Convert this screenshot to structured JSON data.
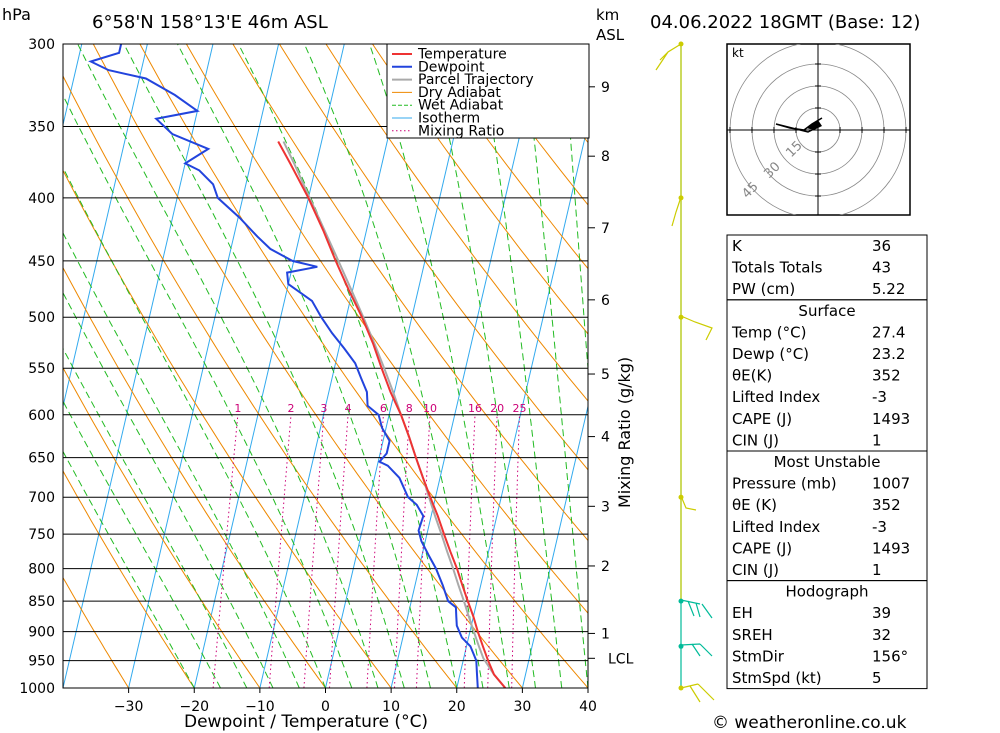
{
  "header": {
    "pressure_unit": "hPa",
    "location": "6°58'N 158°13'E 46m ASL",
    "height_unit_1": "km",
    "height_unit_2": "ASL",
    "datetime": "04.06.2022 18GMT (Base: 12)"
  },
  "footer": {
    "credit": "© weatheronline.co.uk"
  },
  "colors": {
    "temperature": "#ee3333",
    "dewpoint": "#2244dd",
    "parcel": "#aaaaaa",
    "dry_adiabat": "#ee8800",
    "wet_adiabat": "#22bb22",
    "isotherm": "#33aaee",
    "mixing_ratio": "#cc0077",
    "wind_barb": "#cccc00",
    "wind_barb_low": "#00bb99"
  },
  "chart_data": {
    "type": "line",
    "title": "",
    "xlabel": "Dewpoint / Temperature (°C)",
    "ylabel": "hPa",
    "right_label": "Mixing Ratio (g/kg)",
    "x_ticks": [
      -30,
      -20,
      -10,
      0,
      10,
      20,
      30,
      40
    ],
    "y_ticks": [
      300,
      350,
      400,
      450,
      500,
      550,
      600,
      650,
      700,
      750,
      800,
      850,
      900,
      950,
      1000
    ],
    "ylim": [
      1000,
      300
    ],
    "xlim_at_1000hPa": [
      -40,
      40
    ],
    "km_ticks": [
      {
        "label": "1",
        "p": 903
      },
      {
        "label": "2",
        "p": 796
      },
      {
        "label": "3",
        "p": 712
      },
      {
        "label": "4",
        "p": 625
      },
      {
        "label": "5",
        "p": 556
      },
      {
        "label": "6",
        "p": 484
      },
      {
        "label": "7",
        "p": 423
      },
      {
        "label": "8",
        "p": 370
      },
      {
        "label": "9",
        "p": 325
      }
    ],
    "lcl": {
      "label": "LCL",
      "p": 946
    },
    "mixing_ratio_labels": [
      "1",
      "2",
      "3",
      "4",
      "6",
      "8",
      "10",
      "16",
      "20",
      "25"
    ],
    "mixing_ratio_values": [
      1,
      2,
      3,
      4,
      6,
      8,
      10,
      16,
      20,
      25
    ],
    "legend": {
      "placement": "top-center",
      "entries": [
        "Temperature",
        "Dewpoint",
        "Parcel Trajectory",
        "Dry Adiabat",
        "Wet Adiabat",
        "Isotherm",
        "Mixing Ratio"
      ]
    },
    "series": [
      {
        "name": "Temperature",
        "color": "#ee3333",
        "points": [
          [
            1000,
            27.4
          ],
          [
            975,
            25.2
          ],
          [
            950,
            23.8
          ],
          [
            925,
            22.5
          ],
          [
            900,
            21.2
          ],
          [
            875,
            20.0
          ],
          [
            850,
            18.6
          ],
          [
            825,
            17.2
          ],
          [
            800,
            15.8
          ],
          [
            775,
            14.2
          ],
          [
            750,
            12.6
          ],
          [
            725,
            11.0
          ],
          [
            700,
            9.2
          ],
          [
            675,
            7.4
          ],
          [
            650,
            5.6
          ],
          [
            625,
            3.8
          ],
          [
            600,
            1.8
          ],
          [
            575,
            -0.6
          ],
          [
            550,
            -2.8
          ],
          [
            525,
            -5.0
          ],
          [
            500,
            -7.6
          ],
          [
            475,
            -10.6
          ],
          [
            450,
            -13.6
          ],
          [
            425,
            -16.6
          ],
          [
            400,
            -20.0
          ],
          [
            375,
            -24.0
          ],
          [
            360,
            -26.6
          ]
        ]
      },
      {
        "name": "Dewpoint",
        "color": "#2244dd",
        "points": [
          [
            1000,
            23.2
          ],
          [
            975,
            22.6
          ],
          [
            950,
            22.0
          ],
          [
            925,
            20.6
          ],
          [
            910,
            19.0
          ],
          [
            890,
            17.8
          ],
          [
            875,
            17.4
          ],
          [
            860,
            17.0
          ],
          [
            850,
            15.6
          ],
          [
            825,
            14.2
          ],
          [
            800,
            12.6
          ],
          [
            780,
            11.0
          ],
          [
            760,
            9.4
          ],
          [
            745,
            8.6
          ],
          [
            725,
            8.8
          ],
          [
            710,
            7.4
          ],
          [
            700,
            5.8
          ],
          [
            675,
            3.8
          ],
          [
            660,
            1.6
          ],
          [
            655,
            0.2
          ],
          [
            645,
            1.0
          ],
          [
            630,
            1.0
          ],
          [
            615,
            -0.6
          ],
          [
            600,
            -1.6
          ],
          [
            590,
            -3.6
          ],
          [
            575,
            -4.2
          ],
          [
            560,
            -5.6
          ],
          [
            545,
            -7.0
          ],
          [
            530,
            -9.2
          ],
          [
            515,
            -11.6
          ],
          [
            500,
            -13.8
          ],
          [
            485,
            -15.8
          ],
          [
            470,
            -20.0
          ],
          [
            460,
            -20.6
          ],
          [
            455,
            -16.2
          ],
          [
            450,
            -20.2
          ],
          [
            440,
            -24.0
          ],
          [
            430,
            -26.4
          ],
          [
            415,
            -29.8
          ],
          [
            400,
            -33.8
          ],
          [
            390,
            -35.0
          ],
          [
            380,
            -37.6
          ],
          [
            375,
            -40.0
          ],
          [
            365,
            -37.0
          ],
          [
            355,
            -43.0
          ],
          [
            345,
            -46.0
          ],
          [
            340,
            -40.0
          ],
          [
            330,
            -44.0
          ],
          [
            320,
            -49.0
          ],
          [
            315,
            -55.0
          ],
          [
            310,
            -58.0
          ],
          [
            305,
            -54.0
          ],
          [
            300,
            -54.0
          ]
        ]
      },
      {
        "name": "Parcel Trajectory",
        "color": "#aaaaaa",
        "points": [
          [
            1000,
            27.4
          ],
          [
            975,
            25.2
          ],
          [
            946,
            23.0
          ],
          [
            925,
            21.9
          ],
          [
            900,
            20.6
          ],
          [
            875,
            19.3
          ],
          [
            850,
            18.0
          ],
          [
            825,
            16.6
          ],
          [
            800,
            15.2
          ],
          [
            775,
            13.7
          ],
          [
            750,
            12.2
          ],
          [
            725,
            10.6
          ],
          [
            700,
            9.0
          ],
          [
            675,
            7.4
          ],
          [
            650,
            5.6
          ],
          [
            625,
            3.8
          ],
          [
            600,
            1.8
          ],
          [
            575,
            -0.2
          ],
          [
            550,
            -2.4
          ],
          [
            525,
            -4.8
          ],
          [
            500,
            -7.4
          ],
          [
            475,
            -10.2
          ],
          [
            450,
            -13.2
          ],
          [
            425,
            -16.4
          ],
          [
            400,
            -19.8
          ],
          [
            375,
            -23.4
          ],
          [
            360,
            -25.8
          ]
        ]
      }
    ]
  },
  "hodograph": {
    "unit": "kt",
    "ring_labels": [
      "15",
      "30",
      "45"
    ]
  },
  "indices": {
    "top": [
      {
        "label": "K",
        "value": "36"
      },
      {
        "label": "Totals Totals",
        "value": "43"
      },
      {
        "label": "PW (cm)",
        "value": "5.22"
      }
    ],
    "surface": {
      "heading": "Surface",
      "rows": [
        {
          "label": "Temp (°C)",
          "value": "27.4"
        },
        {
          "label": "Dewp (°C)",
          "value": "23.2"
        },
        {
          "label": "θE(K)",
          "value": "352"
        },
        {
          "label": "Lifted Index",
          "value": "-3"
        },
        {
          "label": "CAPE (J)",
          "value": "1493"
        },
        {
          "label": "CIN (J)",
          "value": "1"
        }
      ]
    },
    "most_unstable": {
      "heading": "Most Unstable",
      "rows": [
        {
          "label": "Pressure (mb)",
          "value": "1007"
        },
        {
          "label": "θE (K)",
          "value": "352"
        },
        {
          "label": "Lifted Index",
          "value": "-3"
        },
        {
          "label": "CAPE (J)",
          "value": "1493"
        },
        {
          "label": "CIN (J)",
          "value": "1"
        }
      ]
    },
    "hodograph": {
      "heading": "Hodograph",
      "rows": [
        {
          "label": "EH",
          "value": "39"
        },
        {
          "label": "SREH",
          "value": "32"
        },
        {
          "label": "StmDir",
          "value": "156°"
        },
        {
          "label": "StmSpd (kt)",
          "value": "5"
        }
      ]
    }
  }
}
